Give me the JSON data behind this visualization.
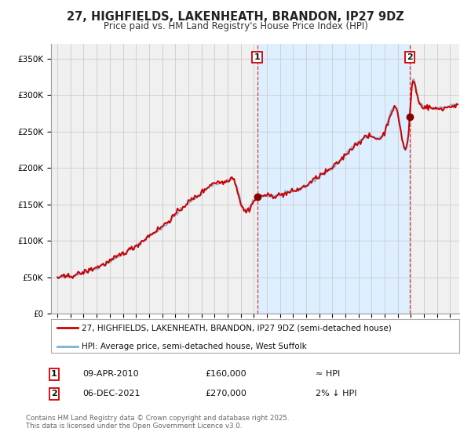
{
  "title": "27, HIGHFIELDS, LAKENHEATH, BRANDON, IP27 9DZ",
  "subtitle": "Price paid vs. HM Land Registry's House Price Index (HPI)",
  "hpi_color": "#7ab0d4",
  "price_color": "#cc0000",
  "bg_color": "#ffffff",
  "plot_bg": "#f0f0f0",
  "highlight_bg": "#ddeeff",
  "grid_color": "#cccccc",
  "ylim": [
    0,
    370000
  ],
  "yticks": [
    0,
    50000,
    100000,
    150000,
    200000,
    250000,
    300000,
    350000
  ],
  "ytick_labels": [
    "£0",
    "£50K",
    "£100K",
    "£150K",
    "£200K",
    "£250K",
    "£300K",
    "£350K"
  ],
  "sale1_date": "09-APR-2010",
  "sale1_price": 160000,
  "sale1_x": 2010.27,
  "sale2_date": "06-DEC-2021",
  "sale2_price": 270000,
  "sale2_x": 2021.92,
  "footnote1": "Contains HM Land Registry data © Crown copyright and database right 2025.",
  "footnote2": "This data is licensed under the Open Government Licence v3.0.",
  "legend_price": "27, HIGHFIELDS, LAKENHEATH, BRANDON, IP27 9DZ (semi-detached house)",
  "legend_hpi": "HPI: Average price, semi-detached house, West Suffolk"
}
